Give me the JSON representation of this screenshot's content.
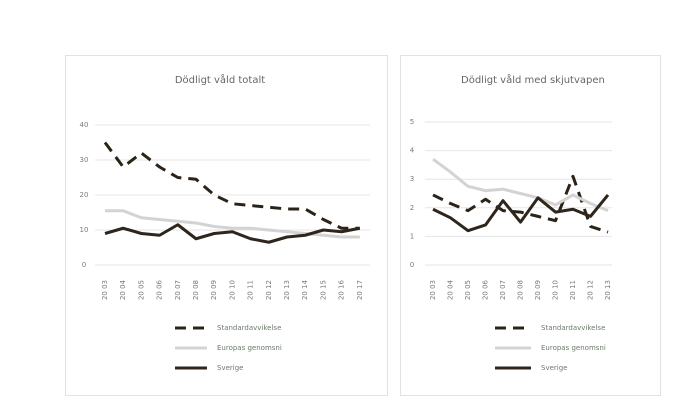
{
  "chart_data": [
    {
      "type": "line",
      "title": "Dödligt våld totalt",
      "categories": [
        "20 03",
        "20 04",
        "20 05",
        "20 06",
        "20 07",
        "20 08",
        "20 09",
        "20 10",
        "20 11",
        "20 12",
        "20 13",
        "20 14",
        "20 15",
        "20 16",
        "20 17"
      ],
      "ylim": [
        0,
        40
      ],
      "yticks": [
        0,
        10,
        20,
        30,
        40
      ],
      "grid": true,
      "series": [
        {
          "name": "Standardavvikelse",
          "color": "#2b2318",
          "dash": true,
          "values": [
            35,
            28,
            32,
            28,
            25,
            24.5,
            20,
            17.5,
            17,
            16.5,
            16,
            16,
            13,
            10.5,
            10.5
          ]
        },
        {
          "name": "Europas genomsni",
          "color": "#d3d3d3",
          "dash": false,
          "values": [
            15.5,
            15.5,
            13.5,
            13,
            12.5,
            12,
            11,
            10.5,
            10.5,
            10,
            9.5,
            9,
            8.5,
            8,
            8
          ]
        },
        {
          "name": "Sverige",
          "color": "#2e261c",
          "dash": false,
          "values": [
            9,
            10.5,
            9,
            8.5,
            11.5,
            7.5,
            9,
            9.5,
            7.5,
            6.5,
            8,
            8.5,
            10,
            9.5,
            10.5
          ]
        }
      ]
    },
    {
      "type": "line",
      "title": "Dödligt våld med skjutvapen",
      "categories": [
        "20 03",
        "20 04",
        "20 05",
        "20 06",
        "20 07",
        "20 08",
        "20 09",
        "20 10",
        "20 11",
        "20 12",
        "20 13"
      ],
      "ylim": [
        0,
        5
      ],
      "yticks": [
        0,
        1,
        2,
        3,
        4,
        5
      ],
      "grid": true,
      "series": [
        {
          "name": "Standardavvikelse",
          "color": "#2b2318",
          "dash": true,
          "values": [
            2.45,
            2.15,
            1.9,
            2.3,
            1.9,
            1.85,
            1.7,
            1.55,
            3.1,
            1.35,
            1.15
          ]
        },
        {
          "name": "Europas genomsni",
          "color": "#d3d3d3",
          "dash": false,
          "values": [
            3.7,
            3.25,
            2.75,
            2.6,
            2.65,
            2.5,
            2.35,
            2.1,
            2.45,
            2.15,
            1.9
          ]
        },
        {
          "name": "Sverige",
          "color": "#2e261c",
          "dash": false,
          "values": [
            1.95,
            1.65,
            1.2,
            1.4,
            2.25,
            1.5,
            2.35,
            1.85,
            1.95,
            1.7,
            2.45
          ]
        }
      ]
    }
  ]
}
